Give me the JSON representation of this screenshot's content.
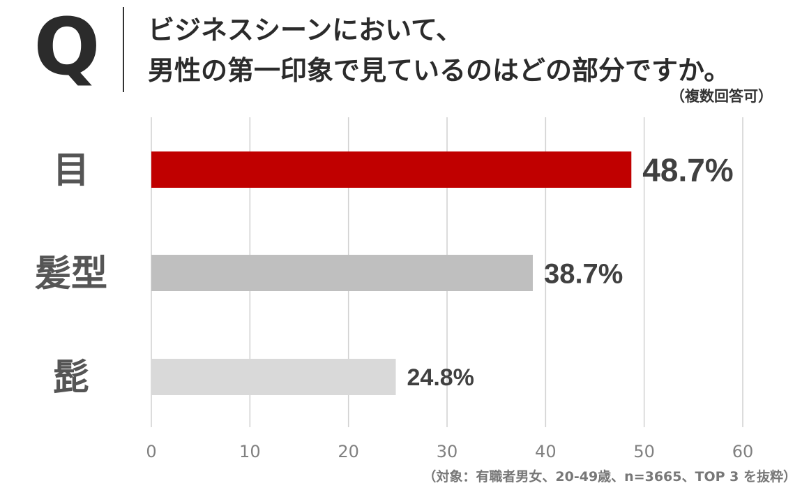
{
  "header": {
    "q_mark": "Q",
    "title_line1": "ビジネスシーンにおいて、",
    "title_line2": "男性の第一印象で見ているのはどの部分ですか。",
    "note": "（複数回答可）"
  },
  "footer": {
    "source": "（対象：有職者男女、20-49歳、n=3665、TOP 3 を抜粋）"
  },
  "colors": {
    "highlight": "#c00000",
    "second": "#bfbfbf",
    "third": "#d9d9d9",
    "grid": "#d0d0d0",
    "text": "#404040",
    "tick": "#808080"
  },
  "chart_data": {
    "type": "bar",
    "orientation": "horizontal",
    "categories": [
      "目",
      "髪型",
      "髭"
    ],
    "values": [
      48.7,
      38.7,
      24.8
    ],
    "value_labels": [
      "48.7%",
      "38.7%",
      "24.8%"
    ],
    "xlim": [
      0,
      60
    ],
    "x_ticks": [
      0,
      10,
      20,
      30,
      40,
      50,
      60
    ],
    "x_tick_labels": [
      "0",
      "10",
      "20",
      "30",
      "40",
      "50",
      "60"
    ],
    "grid": true,
    "legend": "none",
    "bar_colors": [
      "#c00000",
      "#bfbfbf",
      "#d9d9d9"
    ]
  }
}
